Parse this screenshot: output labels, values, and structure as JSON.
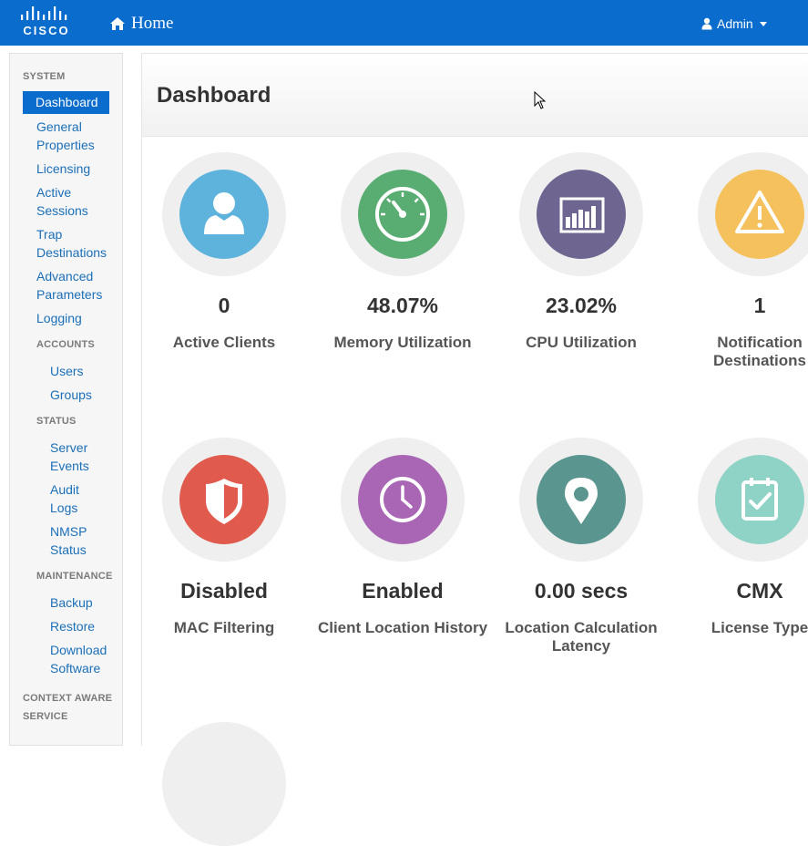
{
  "header": {
    "logo_text": "CISCO",
    "home_label": "Home",
    "user_label": "Admin"
  },
  "sidebar": {
    "system_heading": "SYSTEM",
    "system_items": [
      {
        "label": "Dashboard",
        "active": true
      },
      {
        "label": "General Properties"
      },
      {
        "label": "Licensing"
      },
      {
        "label": "Active Sessions"
      },
      {
        "label": "Trap Destinations"
      },
      {
        "label": "Advanced Parameters"
      },
      {
        "label": "Logging"
      }
    ],
    "accounts_heading": "ACCOUNTS",
    "accounts_items": [
      {
        "label": "Users"
      },
      {
        "label": "Groups"
      }
    ],
    "status_heading": "STATUS",
    "status_items": [
      {
        "label": "Server Events"
      },
      {
        "label": "Audit Logs"
      },
      {
        "label": "NMSP Status"
      }
    ],
    "maintenance_heading": "MAINTENANCE",
    "maintenance_items": [
      {
        "label": "Backup"
      },
      {
        "label": "Restore"
      },
      {
        "label": "Download Software"
      }
    ],
    "context_heading": "CONTEXT AWARE SERVICE"
  },
  "main": {
    "title": "Dashboard",
    "tiles": [
      {
        "value": "0",
        "label": "Active Clients",
        "icon": "user-icon",
        "color": "#5db3dc"
      },
      {
        "value": "48.07%",
        "label": "Memory Utilization",
        "icon": "gauge-icon",
        "color": "#5aad72"
      },
      {
        "value": "23.02%",
        "label": "CPU Utilization",
        "icon": "bar-chart-icon",
        "color": "#6e6590"
      },
      {
        "value": "1",
        "label": "Notification Destinations",
        "icon": "warning-icon",
        "color": "#f5c15c"
      },
      {
        "value": "Disabled",
        "label": "MAC Filtering",
        "icon": "shield-icon",
        "color": "#e05a4e"
      },
      {
        "value": "Enabled",
        "label": "Client Location History",
        "icon": "clock-icon",
        "color": "#a866b4"
      },
      {
        "value": "0.00 secs",
        "label": "Location Calculation Latency",
        "icon": "map-pin-icon",
        "color": "#5a958f"
      },
      {
        "value": "CMX",
        "label": "License Type",
        "icon": "clipboard-check-icon",
        "color": "#8fd3c6"
      }
    ]
  }
}
